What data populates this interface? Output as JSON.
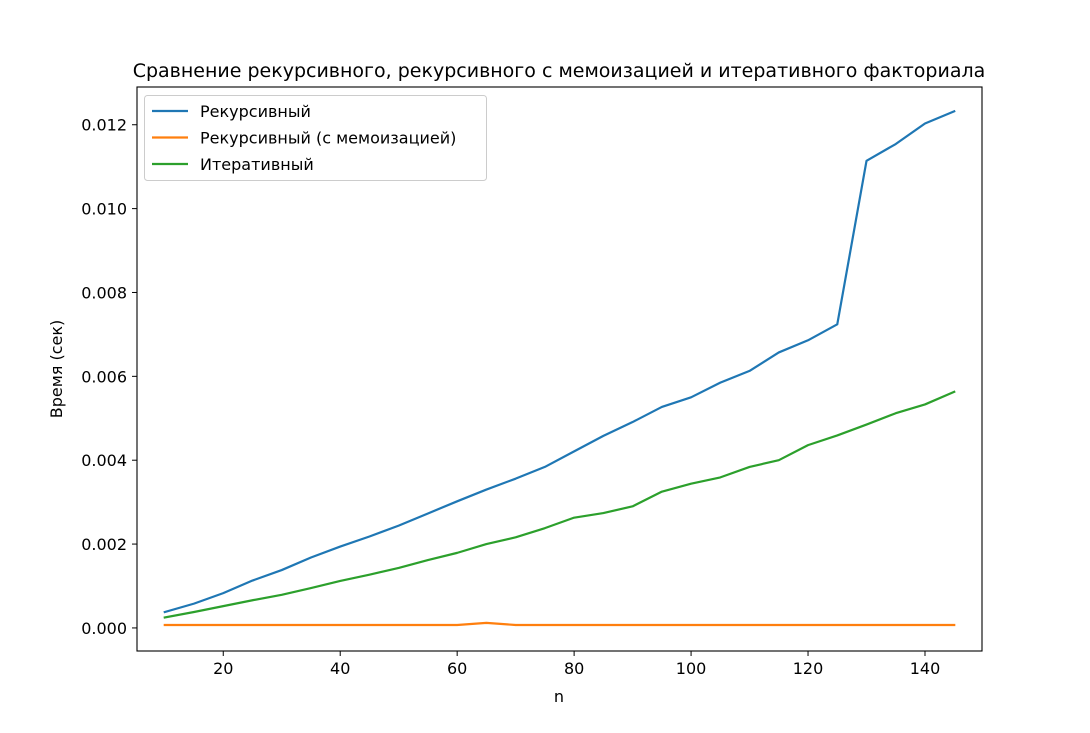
{
  "chart_data": {
    "type": "line",
    "title": "Сравнение рекурсивного, рекурсивного с мемоизацией и итеративного факториала",
    "xlabel": "n",
    "ylabel": "Время (сек)",
    "xlim": [
      5.25,
      149.75
    ],
    "ylim": [
      -0.00055,
      0.0129
    ],
    "x_ticks": [
      20,
      40,
      60,
      80,
      100,
      120,
      140
    ],
    "x_tick_labels": [
      "20",
      "40",
      "60",
      "80",
      "100",
      "120",
      "140"
    ],
    "y_ticks": [
      0.0,
      0.002,
      0.004,
      0.006,
      0.008,
      0.01,
      0.012
    ],
    "y_tick_labels": [
      "0.000",
      "0.002",
      "0.004",
      "0.006",
      "0.008",
      "0.010",
      "0.012"
    ],
    "grid": false,
    "legend_position": "upper-left",
    "x": [
      10,
      15,
      20,
      25,
      30,
      35,
      40,
      45,
      50,
      55,
      60,
      65,
      70,
      75,
      80,
      85,
      90,
      95,
      100,
      105,
      110,
      115,
      120,
      125,
      130,
      135,
      140,
      145
    ],
    "series": [
      {
        "name": "Рекурсивный",
        "color": "#1f77b4",
        "values": [
          0.00038,
          0.00058,
          0.00083,
          0.00113,
          0.00138,
          0.00168,
          0.00194,
          0.00218,
          0.00244,
          0.00273,
          0.00302,
          0.0033,
          0.00356,
          0.00384,
          0.00421,
          0.00458,
          0.00491,
          0.00527,
          0.0055,
          0.00585,
          0.00613,
          0.00657,
          0.00686,
          0.00724,
          0.01114,
          0.01154,
          0.01203,
          0.01232
        ]
      },
      {
        "name": "Рекурсивный (с мемоизацией)",
        "color": "#ff7f0e",
        "values": [
          7e-05,
          7e-05,
          7e-05,
          7e-05,
          7e-05,
          7e-05,
          7e-05,
          7e-05,
          7e-05,
          7e-05,
          7e-05,
          0.00012,
          7e-05,
          7e-05,
          7e-05,
          7e-05,
          7e-05,
          7e-05,
          7e-05,
          7e-05,
          7e-05,
          7e-05,
          7e-05,
          7e-05,
          7e-05,
          7e-05,
          7e-05,
          7e-05
        ]
      },
      {
        "name": "Итеративный",
        "color": "#2ca02c",
        "values": [
          0.00025,
          0.00038,
          0.00052,
          0.00066,
          0.00079,
          0.00095,
          0.00112,
          0.00127,
          0.00143,
          0.00162,
          0.00179,
          0.002,
          0.00216,
          0.00238,
          0.00263,
          0.00274,
          0.0029,
          0.00325,
          0.00344,
          0.00359,
          0.00384,
          0.004,
          0.00436,
          0.00459,
          0.00485,
          0.00512,
          0.00533,
          0.00563
        ]
      }
    ]
  }
}
